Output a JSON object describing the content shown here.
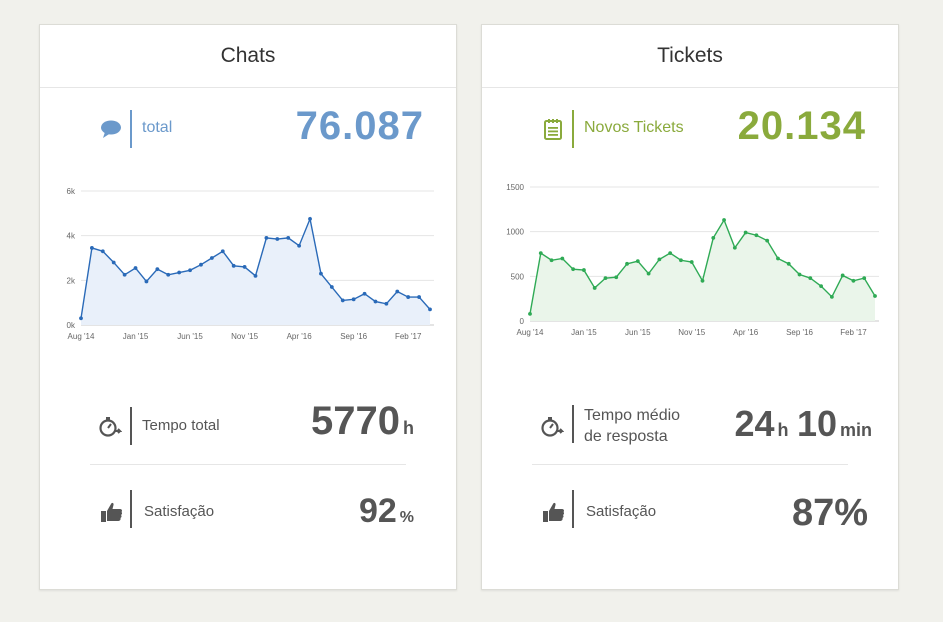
{
  "chats": {
    "title": "Chats",
    "kpi_label": "total",
    "kpi_value": "76.087",
    "time_label": "Tempo total",
    "time_value": "5770",
    "time_unit": "h",
    "sat_label": "Satisfação",
    "sat_value": "92",
    "sat_unit": "%",
    "color": "#6b99cb"
  },
  "tickets": {
    "title": "Tickets",
    "kpi_label": "Novos Tickets",
    "kpi_value": "20.134",
    "time_label_line1": "Tempo médio",
    "time_label_line2": "de resposta",
    "time_h_value": "24",
    "time_h_unit": "h",
    "time_min_value": "10",
    "time_min_unit": "min",
    "sat_label": "Satisfação",
    "sat_value": "87%",
    "color": "#8aaa3c"
  },
  "icons": {
    "chat": "speech-bubble-icon",
    "ticket": "notepad-icon",
    "timer": "stopwatch-icon",
    "like": "thumbs-up-icon"
  },
  "chart_data": [
    {
      "type": "area",
      "series_name": "Chats",
      "color": "#2a6ab8",
      "fill": "#e9f0fa",
      "x_tick_labels": [
        "Aug '14",
        "Jan '15",
        "Jun '15",
        "Nov '15",
        "Apr '16",
        "Sep '16",
        "Feb '17"
      ],
      "x_tick_index": [
        0,
        5,
        10,
        15,
        20,
        25,
        30
      ],
      "y_ticks": [
        0,
        2000,
        4000,
        6000
      ],
      "y_tick_labels": [
        "0k",
        "2k",
        "4k",
        "6k"
      ],
      "ylim": [
        0,
        6000
      ],
      "values": [
        300,
        3450,
        3300,
        2800,
        2250,
        2550,
        1950,
        2500,
        2250,
        2350,
        2450,
        2700,
        3000,
        3300,
        2650,
        2600,
        2200,
        3900,
        3850,
        3900,
        3550,
        4750,
        2300,
        1700,
        1100,
        1150,
        1400,
        1050,
        950,
        1500,
        1250,
        1250,
        700
      ]
    },
    {
      "type": "area",
      "series_name": "Tickets",
      "color": "#2faa55",
      "fill": "#eaf5ea",
      "x_tick_labels": [
        "Aug '14",
        "Jan '15",
        "Jun '15",
        "Nov '15",
        "Apr '16",
        "Sep '16",
        "Feb '17"
      ],
      "x_tick_index": [
        0,
        5,
        10,
        15,
        20,
        25,
        30
      ],
      "y_ticks": [
        0,
        500,
        1000,
        1500
      ],
      "y_tick_labels": [
        "0",
        "500",
        "1000",
        "1500"
      ],
      "ylim": [
        0,
        1500
      ],
      "values": [
        80,
        760,
        680,
        700,
        580,
        570,
        370,
        480,
        490,
        640,
        670,
        530,
        690,
        760,
        680,
        660,
        450,
        930,
        1130,
        820,
        990,
        960,
        900,
        700,
        640,
        520,
        480,
        390,
        270,
        510,
        450,
        480,
        280
      ]
    }
  ]
}
